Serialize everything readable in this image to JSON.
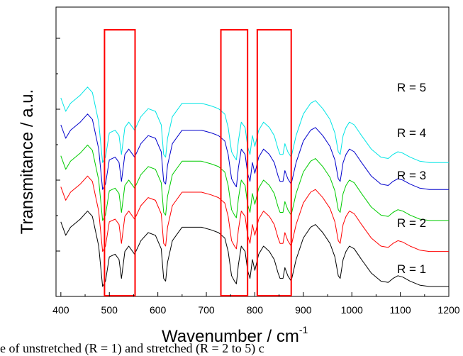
{
  "chart_data": {
    "type": "line",
    "title": "",
    "xlabel": "Wavenumber / cm",
    "xlabel_sup": "-1",
    "ylabel": "Transmitance / a.u.",
    "xlim": [
      390,
      1200
    ],
    "xticks": [
      400,
      500,
      600,
      700,
      800,
      900,
      1000,
      1100,
      1200
    ],
    "ylim": [
      0,
      10
    ],
    "yticks_labeled": false,
    "grid": false,
    "legend": "none",
    "series": [
      {
        "name": "R = 1",
        "color": "#000000",
        "offset": 0.0
      },
      {
        "name": "R = 2",
        "color": "#ff0000",
        "offset": 1.3
      },
      {
        "name": "R = 3",
        "color": "#00cc00",
        "offset": 2.45
      },
      {
        "name": "R = 4",
        "color": "#0000cc",
        "offset": 3.6
      },
      {
        "name": "R = 5",
        "color": "#00e5e5",
        "offset": 4.6
      }
    ],
    "base_profile": {
      "x": [
        400,
        410,
        420,
        440,
        455,
        465,
        478,
        486,
        492,
        500,
        512,
        520,
        525,
        532,
        540,
        552,
        565,
        580,
        595,
        607,
        612,
        616,
        620,
        630,
        650,
        670,
        690,
        710,
        725,
        738,
        745,
        752,
        758,
        762,
        766,
        772,
        780,
        785,
        790,
        795,
        800,
        808,
        818,
        830,
        840,
        848,
        852,
        858,
        862,
        868,
        875,
        885,
        900,
        915,
        925,
        940,
        955,
        965,
        972,
        976,
        982,
        988,
        995,
        1005,
        1020,
        1040,
        1060,
        1075,
        1085,
        1095,
        1105,
        1120,
        1140,
        1160,
        1180,
        1200
      ],
      "y": [
        2.4,
        1.9,
        2.2,
        2.5,
        2.8,
        2.6,
        1.5,
        0.0,
        0.2,
        1.1,
        1.2,
        1.0,
        0.3,
        1.3,
        1.5,
        1.2,
        1.7,
        2.0,
        1.9,
        1.4,
        0.3,
        0.2,
        0.9,
        1.7,
        2.2,
        2.2,
        2.2,
        2.1,
        2.0,
        1.8,
        1.3,
        0.4,
        0.2,
        0.1,
        0.8,
        1.5,
        1.3,
        0.6,
        0.3,
        1.0,
        0.6,
        1.2,
        1.5,
        1.3,
        1.0,
        0.5,
        0.3,
        0.3,
        0.7,
        0.4,
        0.2,
        1.0,
        1.8,
        2.2,
        2.3,
        2.0,
        1.6,
        1.1,
        0.4,
        0.3,
        1.0,
        1.3,
        1.5,
        1.4,
        1.0,
        0.5,
        0.2,
        0.15,
        0.3,
        0.4,
        0.35,
        0.2,
        0.05,
        0.0,
        0.0,
        0.0
      ]
    },
    "highlight_boxes_x": [
      [
        490,
        553
      ],
      [
        730,
        785
      ],
      [
        805,
        875
      ]
    ]
  },
  "labels": {
    "r5": "R = 5",
    "r4": "R = 4",
    "r3": "R = 3",
    "r2": "R = 2",
    "r1": "R = 1"
  },
  "caption": "e of unstretched (R = 1) and stretched (R = 2 to 5) c",
  "colors": {
    "box": "#ff0000",
    "axis": "#000000"
  }
}
